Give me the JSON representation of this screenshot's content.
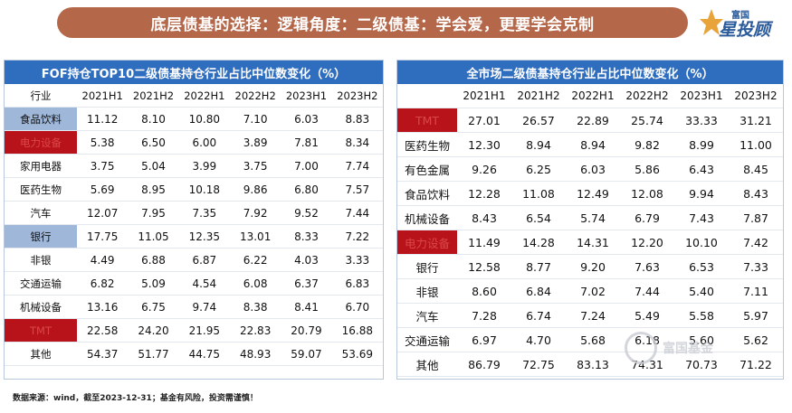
{
  "banner": {
    "title": "底层债基的选择：逻辑角度：二级债基：学会爱，更要学会克制"
  },
  "logo": {
    "top_text": "富国",
    "main_text": "星投顾"
  },
  "left_table": {
    "title": "FOF持仓TOP10二级债基持仓行业占比中位数变化（%）",
    "headers": [
      "行业",
      "2021H1",
      "2021H2",
      "2022H1",
      "2022H2",
      "2023H1",
      "2023H2"
    ],
    "rows": [
      {
        "industry": "食品饮料",
        "highlight": "blue",
        "values": [
          "11.12",
          "8.10",
          "10.80",
          "7.10",
          "6.03",
          "8.83"
        ]
      },
      {
        "industry": "电力设备",
        "highlight": "red",
        "values": [
          "5.38",
          "6.50",
          "6.00",
          "3.89",
          "7.81",
          "8.34"
        ]
      },
      {
        "industry": "家用电器",
        "highlight": "",
        "values": [
          "3.75",
          "5.04",
          "3.99",
          "3.75",
          "7.00",
          "7.74"
        ]
      },
      {
        "industry": "医药生物",
        "highlight": "",
        "values": [
          "5.69",
          "8.95",
          "10.18",
          "9.86",
          "6.80",
          "7.57"
        ]
      },
      {
        "industry": "汽车",
        "highlight": "",
        "values": [
          "12.07",
          "7.95",
          "7.35",
          "7.92",
          "9.52",
          "7.44"
        ]
      },
      {
        "industry": "银行",
        "highlight": "blue",
        "values": [
          "17.75",
          "11.05",
          "12.35",
          "13.01",
          "8.33",
          "7.22"
        ]
      },
      {
        "industry": "非银",
        "highlight": "",
        "values": [
          "4.49",
          "6.88",
          "6.87",
          "6.22",
          "4.03",
          "3.33"
        ]
      },
      {
        "industry": "交通运输",
        "highlight": "",
        "values": [
          "6.82",
          "5.09",
          "4.54",
          "6.08",
          "6.37",
          "6.83"
        ]
      },
      {
        "industry": "机械设备",
        "highlight": "",
        "values": [
          "13.16",
          "6.75",
          "9.74",
          "8.38",
          "8.41",
          "6.70"
        ]
      },
      {
        "industry": "TMT",
        "highlight": "red",
        "values": [
          "22.58",
          "24.20",
          "21.95",
          "22.83",
          "20.79",
          "16.88"
        ]
      },
      {
        "industry": "其他",
        "highlight": "",
        "values": [
          "54.37",
          "51.77",
          "44.75",
          "48.93",
          "59.07",
          "53.69"
        ]
      }
    ]
  },
  "right_table": {
    "title": "全市场二级债基持仓行业占比中位数变化（%）",
    "headers": [
      "",
      "2021H1",
      "2021H2",
      "2022H1",
      "2022H2",
      "2023H1",
      "2023H2"
    ],
    "rows": [
      {
        "industry": "TMT",
        "highlight": "red",
        "values": [
          "27.01",
          "26.57",
          "22.89",
          "25.74",
          "33.33",
          "31.21"
        ]
      },
      {
        "industry": "医药生物",
        "highlight": "",
        "values": [
          "12.30",
          "8.94",
          "8.94",
          "9.82",
          "8.99",
          "11.00"
        ]
      },
      {
        "industry": "有色金属",
        "highlight": "",
        "values": [
          "9.26",
          "6.25",
          "6.03",
          "5.86",
          "6.43",
          "8.45"
        ]
      },
      {
        "industry": "食品饮料",
        "highlight": "",
        "values": [
          "12.28",
          "11.08",
          "12.49",
          "12.08",
          "9.94",
          "8.43"
        ]
      },
      {
        "industry": "机械设备",
        "highlight": "",
        "values": [
          "8.43",
          "6.54",
          "5.74",
          "6.79",
          "7.43",
          "7.87"
        ]
      },
      {
        "industry": "电力设备",
        "highlight": "red",
        "values": [
          "11.49",
          "14.28",
          "14.31",
          "12.20",
          "10.10",
          "7.42"
        ]
      },
      {
        "industry": "银行",
        "highlight": "",
        "values": [
          "12.58",
          "8.77",
          "9.20",
          "7.63",
          "6.53",
          "7.33"
        ]
      },
      {
        "industry": "非银",
        "highlight": "",
        "values": [
          "8.60",
          "6.84",
          "7.02",
          "7.44",
          "5.40",
          "7.11"
        ]
      },
      {
        "industry": "汽车",
        "highlight": "",
        "values": [
          "7.28",
          "6.74",
          "7.24",
          "5.49",
          "5.58",
          "5.97"
        ]
      },
      {
        "industry": "交通运输",
        "highlight": "",
        "values": [
          "6.97",
          "4.70",
          "5.68",
          "6.18",
          "5.60",
          "5.62"
        ]
      },
      {
        "industry": "其他",
        "highlight": "",
        "values": [
          "86.79",
          "72.75",
          "83.13",
          "74.31",
          "70.73",
          "71.22"
        ]
      }
    ]
  },
  "watermark": {
    "text": "富国基金"
  },
  "footnote": {
    "text": "数据来源：wind，截至2023-12-31；基金有风险，投资需谨慎！"
  }
}
